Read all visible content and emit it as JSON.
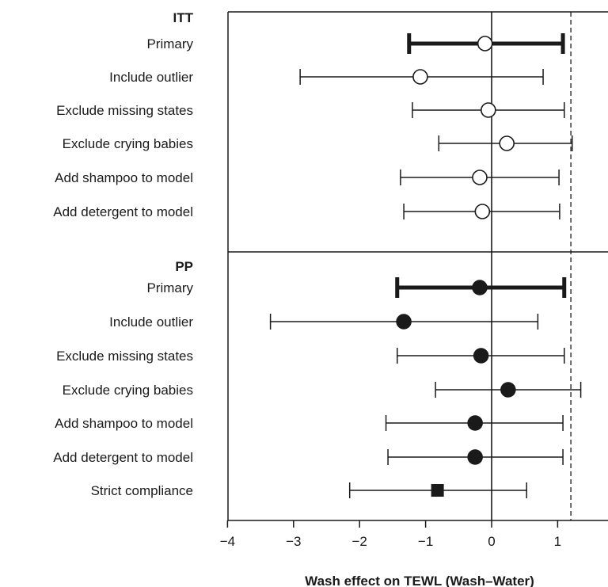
{
  "chart_data": {
    "type": "forest",
    "xlabel": "Wash effect on TEWL (Wash–Water)",
    "xticks": [
      -4,
      -3,
      -2,
      -1,
      0,
      1
    ],
    "xlim": [
      -4,
      1.8
    ],
    "reference_line": 0,
    "dashed_line": 1.2,
    "groups": [
      {
        "label": "ITT",
        "marker": "open-circle",
        "rows": [
          {
            "label": "Primary",
            "estimate": -0.1,
            "lower": -1.25,
            "upper": 1.08,
            "primary": true
          },
          {
            "label": "Include outlier",
            "estimate": -1.08,
            "lower": -2.9,
            "upper": 0.78,
            "primary": false
          },
          {
            "label": "Exclude missing states",
            "estimate": -0.05,
            "lower": -1.2,
            "upper": 1.1,
            "primary": false
          },
          {
            "label": "Exclude crying babies",
            "estimate": 0.23,
            "lower": -0.8,
            "upper": 1.22,
            "primary": false
          },
          {
            "label": "Add shampoo to model",
            "estimate": -0.18,
            "lower": -1.38,
            "upper": 1.02,
            "primary": false
          },
          {
            "label": "Add detergent to model",
            "estimate": -0.14,
            "lower": -1.33,
            "upper": 1.03,
            "primary": false
          }
        ]
      },
      {
        "label": "PP",
        "marker": "filled-circle",
        "rows": [
          {
            "label": "Primary",
            "estimate": -0.18,
            "lower": -1.43,
            "upper": 1.1,
            "primary": true
          },
          {
            "label": "Include outlier",
            "estimate": -1.33,
            "lower": -3.35,
            "upper": 0.7,
            "primary": false
          },
          {
            "label": "Exclude missing states",
            "estimate": -0.16,
            "lower": -1.43,
            "upper": 1.1,
            "primary": false
          },
          {
            "label": "Exclude crying babies",
            "estimate": 0.25,
            "lower": -0.85,
            "upper": 1.35,
            "primary": false
          },
          {
            "label": "Add shampoo to model",
            "estimate": -0.25,
            "lower": -1.6,
            "upper": 1.08,
            "primary": false
          },
          {
            "label": "Add detergent to model",
            "estimate": -0.25,
            "lower": -1.57,
            "upper": 1.08,
            "primary": false
          },
          {
            "label": "Strict compliance",
            "estimate": -0.82,
            "lower": -2.15,
            "upper": 0.53,
            "primary": false,
            "marker": "filled-square"
          }
        ]
      }
    ]
  }
}
